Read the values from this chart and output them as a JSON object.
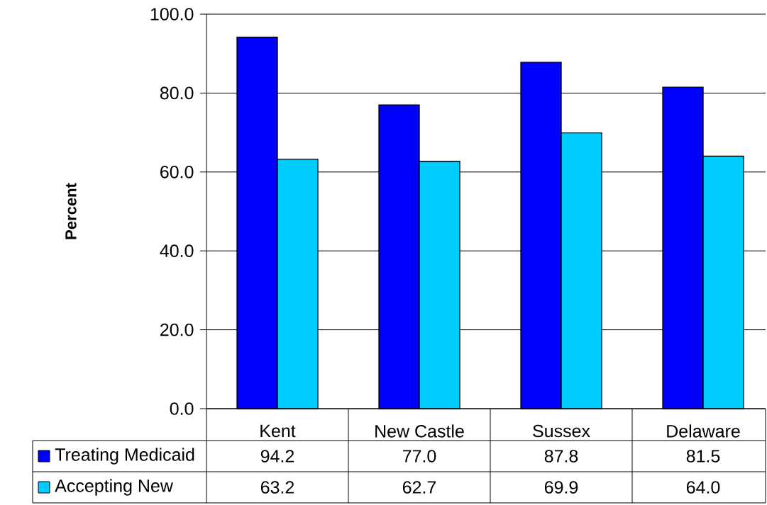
{
  "chart_data": {
    "type": "bar",
    "ylabel": "Percent",
    "categories": [
      "Kent",
      "New Castle",
      "Sussex",
      "Delaware"
    ],
    "series": [
      {
        "name": "Treating Medicaid",
        "color": "#0000ff",
        "values": [
          94.2,
          77.0,
          87.8,
          81.5
        ],
        "value_labels": [
          "94.2",
          "77.0",
          "87.8",
          "81.5"
        ]
      },
      {
        "name": "Accepting New",
        "color": "#00ccff",
        "values": [
          63.2,
          62.7,
          69.9,
          64.0
        ],
        "value_labels": [
          "63.2",
          "62.7",
          "69.9",
          "64.0"
        ]
      }
    ],
    "ylim": [
      0,
      100
    ],
    "yticks": [
      {
        "value": 0,
        "label": "0.0"
      },
      {
        "value": 20,
        "label": "20.0"
      },
      {
        "value": 40,
        "label": "40.0"
      },
      {
        "value": 60,
        "label": "60.0"
      },
      {
        "value": 80,
        "label": "80.0"
      },
      {
        "value": 100,
        "label": "100.0"
      }
    ],
    "grid": "y",
    "legend": "bottom"
  }
}
